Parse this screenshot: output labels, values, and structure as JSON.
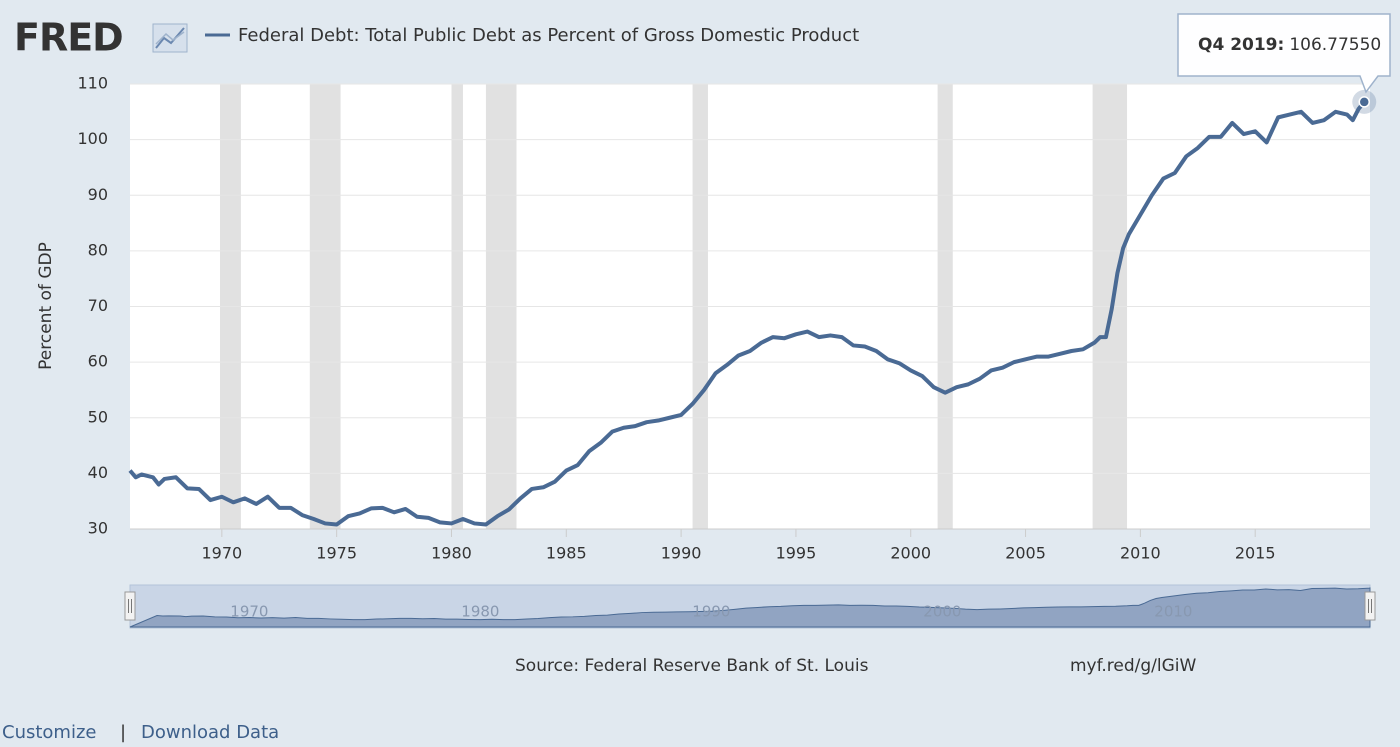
{
  "logo": "FRED",
  "chart_data": {
    "type": "line",
    "y_label": "Percent of GDP",
    "x": [
      1966,
      1966.25,
      1966.5,
      1967,
      1967.25,
      1967.5,
      1968,
      1968.5,
      1969,
      1969.5,
      1970,
      1970.5,
      1971,
      1971.5,
      1972,
      1972.5,
      1973,
      1973.5,
      1974,
      1974.5,
      1975,
      1975.5,
      1976,
      1976.5,
      1977,
      1977.5,
      1978,
      1978.5,
      1979,
      1979.5,
      1980,
      1980.5,
      1981,
      1981.5,
      1982,
      1982.5,
      1983,
      1983.5,
      1984,
      1984.5,
      1985,
      1985.5,
      1986,
      1986.5,
      1987,
      1987.5,
      1988,
      1988.5,
      1989,
      1989.5,
      1990,
      1990.5,
      1991,
      1991.5,
      1992,
      1992.5,
      1993,
      1993.5,
      1994,
      1994.5,
      1995,
      1995.5,
      1996,
      1996.5,
      1997,
      1997.5,
      1998,
      1998.5,
      1999,
      1999.5,
      2000,
      2000.5,
      2001,
      2001.5,
      2002,
      2002.5,
      2003,
      2003.5,
      2004,
      2004.5,
      2005,
      2005.5,
      2006,
      2006.5,
      2007,
      2007.5,
      2008,
      2008.25,
      2008.5,
      2008.75,
      2009,
      2009.25,
      2009.5,
      2010,
      2010.5,
      2011,
      2011.5,
      2012,
      2012.5,
      2013,
      2013.5,
      2014,
      2014.5,
      2015,
      2015.5,
      2016,
      2016.5,
      2017,
      2017.5,
      2018,
      2018.5,
      2019,
      2019.25,
      2019.5,
      2019.75
    ],
    "series": [
      {
        "name": "Federal Debt: Total Public Debt as Percent of Gross Domestic Product",
        "color": "#4a6a94",
        "values": [
          40.5,
          39.3,
          39.8,
          39.3,
          38.0,
          39.0,
          39.3,
          37.3,
          37.2,
          35.2,
          35.8,
          34.8,
          35.5,
          34.5,
          35.8,
          33.8,
          33.8,
          32.5,
          31.8,
          31.0,
          30.8,
          32.3,
          32.8,
          33.7,
          33.8,
          33.0,
          33.6,
          32.2,
          32.0,
          31.2,
          31.0,
          31.8,
          31.0,
          30.8,
          32.3,
          33.5,
          35.5,
          37.2,
          37.5,
          38.5,
          40.5,
          41.5,
          44.0,
          45.5,
          47.5,
          48.2,
          48.5,
          49.2,
          49.5,
          50.0,
          50.5,
          52.5,
          55.0,
          58.0,
          59.5,
          61.2,
          62.0,
          63.5,
          64.5,
          64.3,
          65.0,
          65.5,
          64.5,
          64.8,
          64.5,
          63.0,
          62.8,
          62.0,
          60.5,
          59.8,
          58.5,
          57.5,
          55.5,
          54.5,
          55.5,
          56.0,
          57.0,
          58.5,
          59.0,
          60.0,
          60.5,
          61.0,
          61.0,
          61.5,
          62.0,
          62.3,
          63.5,
          64.5,
          64.5,
          69.5,
          76.0,
          80.5,
          83.0,
          86.5,
          90.0,
          93.0,
          94.0,
          97.0,
          98.5,
          100.5,
          100.5,
          103.0,
          101.0,
          101.5,
          99.5,
          104.0,
          104.5,
          105.0,
          103.0,
          103.5,
          105.0,
          104.5,
          103.5,
          105.5,
          106.7755
        ]
      }
    ],
    "xlim": [
      1966,
      2020
    ],
    "ylim": [
      30,
      110
    ],
    "xticks": [
      1970,
      1975,
      1980,
      1985,
      1990,
      1995,
      2000,
      2005,
      2010,
      2015
    ],
    "yticks": [
      30,
      40,
      50,
      60,
      70,
      80,
      90,
      100,
      110
    ],
    "grid": true,
    "recessions": [
      [
        1969.92,
        1970.83
      ],
      [
        1973.83,
        1975.17
      ],
      [
        1980.0,
        1980.5
      ],
      [
        1981.5,
        1982.83
      ],
      [
        1990.5,
        1991.17
      ],
      [
        2001.17,
        2001.83
      ],
      [
        2007.92,
        2009.42
      ]
    ],
    "recession_color": "#e1e1e1",
    "navigator_ticks": [
      1970,
      1980,
      1990,
      2000,
      2010
    ],
    "tooltip": {
      "label": "Q4 2019:",
      "value": 106.7755,
      "value_label": "106.77550"
    }
  },
  "source": "Source: Federal Reserve Bank of St. Louis",
  "short_url": "myf.red/g/lGiW",
  "links": [
    "Customize",
    "|",
    "Download Data"
  ]
}
